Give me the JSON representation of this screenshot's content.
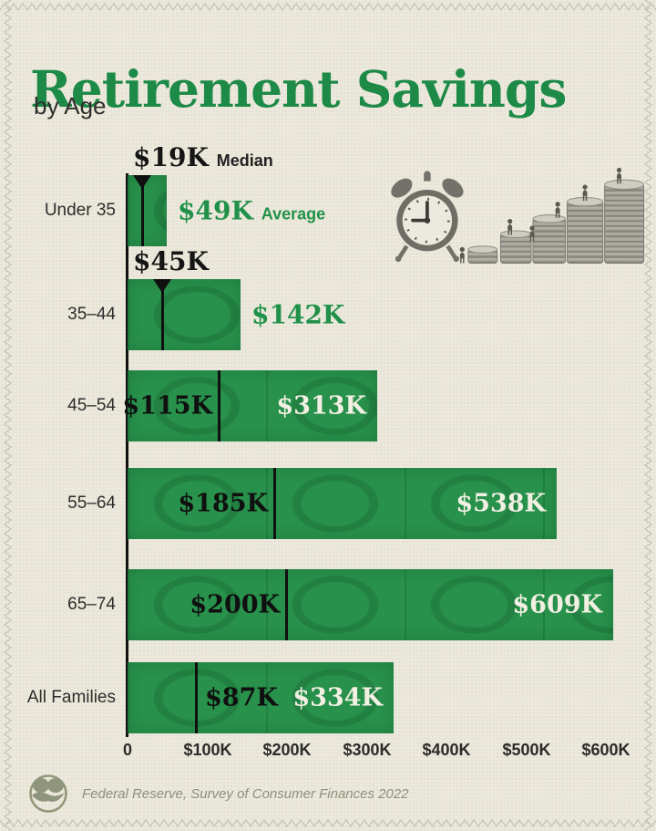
{
  "header": {
    "title": "Retirement Savings",
    "subtitle": "by Age"
  },
  "legend": {
    "median": "Median",
    "average": "Average"
  },
  "chart_data": {
    "type": "bar",
    "orientation": "horizontal",
    "title": "Retirement Savings by Age",
    "unit": "USD thousands",
    "categories": [
      "Under 35",
      "35–44",
      "45–54",
      "55–64",
      "65–74",
      "All Families"
    ],
    "series": [
      {
        "name": "Median",
        "values": [
          19,
          45,
          115,
          185,
          200,
          87
        ]
      },
      {
        "name": "Average",
        "values": [
          49,
          142,
          313,
          538,
          609,
          334
        ]
      }
    ],
    "rows": [
      {
        "label": "Under 35",
        "median": 19,
        "average": 49,
        "median_label": "$19K",
        "average_label": "$49K",
        "median_suffix": "Median",
        "average_suffix": "Average",
        "median_pos": "above",
        "average_pos": "outside"
      },
      {
        "label": "35–44",
        "median": 45,
        "average": 142,
        "median_label": "$45K",
        "average_label": "$142K",
        "median_suffix": "",
        "average_suffix": "",
        "median_pos": "above",
        "average_pos": "outside"
      },
      {
        "label": "45–54",
        "median": 115,
        "average": 313,
        "median_label": "$115K",
        "average_label": "$313K",
        "median_suffix": "",
        "average_suffix": "",
        "median_pos": "inside-left",
        "average_pos": "inside"
      },
      {
        "label": "55–64",
        "median": 185,
        "average": 538,
        "median_label": "$185K",
        "average_label": "$538K",
        "median_suffix": "",
        "average_suffix": "",
        "median_pos": "inside-left",
        "average_pos": "inside"
      },
      {
        "label": "65–74",
        "median": 200,
        "average": 609,
        "median_label": "$200K",
        "average_label": "$609K",
        "median_suffix": "",
        "average_suffix": "",
        "median_pos": "inside-left",
        "average_pos": "inside"
      },
      {
        "label": "All Families",
        "median": 87,
        "average": 334,
        "median_label": "$87K",
        "average_label": "$334K",
        "median_suffix": "",
        "average_suffix": "",
        "median_pos": "inside-right",
        "average_pos": "inside"
      }
    ],
    "x_axis": {
      "tick_values": [
        0,
        100,
        200,
        300,
        400,
        500,
        600
      ],
      "tick_labels": [
        "0",
        "$100K",
        "$200K",
        "$300K",
        "$400K",
        "$500K",
        "$600K"
      ],
      "range_k": [
        0,
        600
      ]
    },
    "grid": false,
    "legend_position": "inline-first-row"
  },
  "footer": {
    "source": "Federal Reserve, Survey of Consumer Finances 2022"
  },
  "illustration": {
    "description": "alarm clock beside rising coin stacks with tiny climbing figures"
  },
  "colors": {
    "background": "#ECE9DC",
    "bar_green": "#28914B",
    "title_green": "#1E8A47",
    "ink": "#1B1B1B",
    "label_white": "#F2EFE3",
    "stitch": "#C6C8B6",
    "footer_text": "#8C9179"
  }
}
